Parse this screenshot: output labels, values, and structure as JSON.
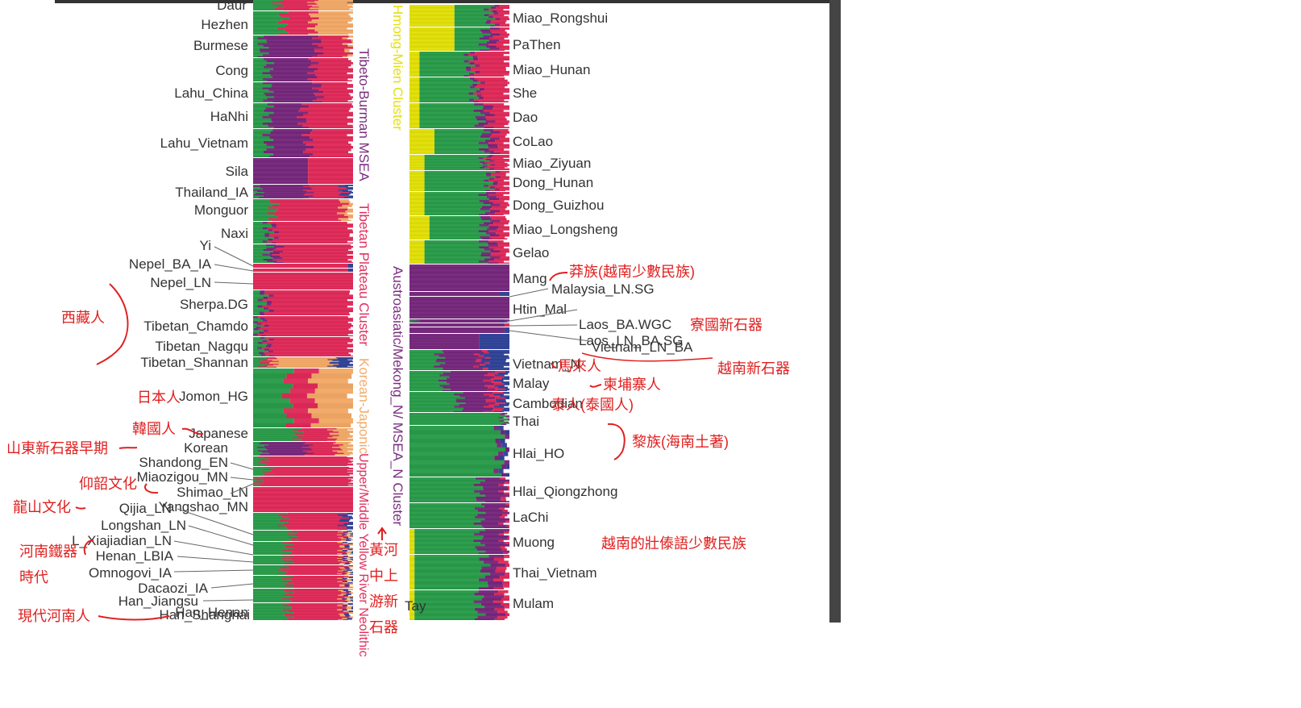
{
  "colors": {
    "green": "#2f9e4f",
    "purple": "#7a2e80",
    "pink": "#e0305e",
    "orange": "#f2ab6a",
    "yellow": "#e3e010",
    "navy": "#36489a",
    "lightpink": "#f0a0c8",
    "teal": "#33c0c0",
    "annotation": "#e02020",
    "label": "#333333"
  },
  "chart_data": {
    "type": "bar",
    "title": "",
    "xlabel": "",
    "ylabel": "",
    "components": [
      "yellow",
      "green",
      "purple",
      "pink",
      "orange",
      "navy"
    ],
    "left_panel": {
      "clusters": [
        "Tibeto-Burman MSEA",
        "Tibetan Plateau Cluster",
        "Korean-Japonic",
        "Upper/Middle Yellow River Neolithic"
      ],
      "groups": [
        {
          "name": "Daur",
          "yellow": 0,
          "green": 0.25,
          "purple": 0,
          "pink": 0.35,
          "orange": 0.4,
          "navy": 0
        },
        {
          "name": "Hezhen",
          "yellow": 0,
          "green": 0.3,
          "purple": 0,
          "pink": 0.3,
          "orange": 0.4,
          "navy": 0
        },
        {
          "name": "Burmese",
          "yellow": 0,
          "green": 0.1,
          "purple": 0.55,
          "pink": 0.3,
          "orange": 0.05,
          "navy": 0
        },
        {
          "name": "Cong",
          "yellow": 0,
          "green": 0.15,
          "purple": 0.45,
          "pink": 0.4,
          "orange": 0,
          "navy": 0
        },
        {
          "name": "Lahu_China",
          "yellow": 0,
          "green": 0.15,
          "purple": 0.5,
          "pink": 0.35,
          "orange": 0,
          "navy": 0
        },
        {
          "name": "HaNhi",
          "yellow": 0,
          "green": 0.15,
          "purple": 0.35,
          "pink": 0.5,
          "orange": 0,
          "navy": 0
        },
        {
          "name": "Lahu_Vietnam",
          "yellow": 0,
          "green": 0.15,
          "purple": 0.4,
          "pink": 0.45,
          "orange": 0,
          "navy": 0
        },
        {
          "name": "Sila",
          "yellow": 0,
          "green": 0,
          "purple": 0.55,
          "pink": 0.45,
          "orange": 0,
          "navy": 0
        },
        {
          "name": "Thailand_IA",
          "yellow": 0,
          "green": 0.05,
          "purple": 0.5,
          "pink": 0.35,
          "orange": 0,
          "navy": 0.1
        },
        {
          "name": "Monguor",
          "yellow": 0,
          "green": 0.2,
          "purple": 0,
          "pink": 0.7,
          "orange": 0.1,
          "navy": 0
        },
        {
          "name": "Naxi",
          "yellow": 0,
          "green": 0.15,
          "purple": 0.05,
          "pink": 0.8,
          "orange": 0,
          "navy": 0
        },
        {
          "name": "Yi",
          "yellow": 0,
          "green": 0.15,
          "purple": 0.1,
          "pink": 0.75,
          "orange": 0,
          "navy": 0
        },
        {
          "name": "Nepel_BA_IA",
          "yellow": 0,
          "green": 0,
          "purple": 0,
          "pink": 0.95,
          "orange": 0,
          "navy": 0.05
        },
        {
          "name": "Nepel_LN",
          "yellow": 0,
          "green": 0,
          "purple": 0,
          "pink": 0.95,
          "orange": 0,
          "navy": 0.05
        },
        {
          "name": "Sherpa.DG",
          "yellow": 0,
          "green": 0,
          "purple": 0,
          "pink": 1,
          "orange": 0,
          "navy": 0
        },
        {
          "name": "Tibetan_Chamdo",
          "yellow": 0,
          "green": 0.1,
          "purple": 0.05,
          "pink": 0.85,
          "orange": 0,
          "navy": 0
        },
        {
          "name": "Tibetan_Nagqu",
          "yellow": 0,
          "green": 0.05,
          "purple": 0.05,
          "pink": 0.9,
          "orange": 0,
          "navy": 0
        },
        {
          "name": "Tibetan_Shannan",
          "yellow": 0,
          "green": 0.1,
          "purple": 0.05,
          "pink": 0.85,
          "orange": 0,
          "navy": 0
        },
        {
          "name": "Jomon_HG",
          "yellow": 0,
          "green": 0.1,
          "purple": 0,
          "pink": 0.1,
          "orange": 0.6,
          "navy": 0.2
        },
        {
          "name": "Japanese",
          "yellow": 0,
          "green": 0.35,
          "purple": 0,
          "pink": 0.25,
          "orange": 0.4,
          "navy": 0
        },
        {
          "name": "Korean",
          "yellow": 0,
          "green": 0.45,
          "purple": 0,
          "pink": 0.35,
          "orange": 0.2,
          "navy": 0
        },
        {
          "name": "Shandong_EN",
          "yellow": 0,
          "green": 0.1,
          "purple": 0.45,
          "pink": 0.3,
          "orange": 0.15,
          "navy": 0
        },
        {
          "name": "Miaozigou_MN",
          "yellow": 0,
          "green": 0.1,
          "purple": 0,
          "pink": 0.9,
          "orange": 0,
          "navy": 0
        },
        {
          "name": "Shimao_LN",
          "yellow": 0,
          "green": 0.15,
          "purple": 0,
          "pink": 0.85,
          "orange": 0,
          "navy": 0
        },
        {
          "name": "Yangshao_MN",
          "yellow": 0,
          "green": 0.05,
          "purple": 0,
          "pink": 0.95,
          "orange": 0,
          "navy": 0
        },
        {
          "name": "Qijia_LN",
          "yellow": 0,
          "green": 0,
          "purple": 0,
          "pink": 1,
          "orange": 0,
          "navy": 0
        },
        {
          "name": "Longshan_LN",
          "yellow": 0,
          "green": 0.3,
          "purple": 0,
          "pink": 0.6,
          "orange": 0,
          "navy": 0.1
        },
        {
          "name": "L_Xiajiadian_LN",
          "yellow": 0,
          "green": 0.4,
          "purple": 0,
          "pink": 0.5,
          "orange": 0.05,
          "navy": 0.05
        },
        {
          "name": "Henan_LBIA",
          "yellow": 0,
          "green": 0.35,
          "purple": 0,
          "pink": 0.55,
          "orange": 0.05,
          "navy": 0.05
        },
        {
          "name": "Omnogovi_IA",
          "yellow": 0,
          "green": 0.35,
          "purple": 0,
          "pink": 0.55,
          "orange": 0.05,
          "navy": 0.05
        },
        {
          "name": "Dacaozi_IA",
          "yellow": 0,
          "green": 0.3,
          "purple": 0,
          "pink": 0.6,
          "orange": 0.05,
          "navy": 0.05
        },
        {
          "name": "Han_Jiangsu",
          "yellow": 0,
          "green": 0.35,
          "purple": 0,
          "pink": 0.55,
          "orange": 0.05,
          "navy": 0.05
        },
        {
          "name": "Han_Shanghai",
          "yellow": 0,
          "green": 0.35,
          "purple": 0,
          "pink": 0.55,
          "orange": 0.05,
          "navy": 0.05
        },
        {
          "name": "Han_Henan",
          "yellow": 0,
          "green": 0.35,
          "purple": 0,
          "pink": 0.55,
          "orange": 0.05,
          "navy": 0.05
        }
      ]
    },
    "right_panel": {
      "clusters": [
        "Hmong-Mien Cluster",
        "Austroasiatic/Mekong_N/ MSEA_N Cluster"
      ],
      "groups": [
        {
          "name": "Miao_Rongshui",
          "yellow": 0.45,
          "green": 0.35,
          "purple": 0.05,
          "pink": 0.15,
          "orange": 0,
          "navy": 0
        },
        {
          "name": "PaThen",
          "yellow": 0.45,
          "green": 0.3,
          "purple": 0.1,
          "pink": 0.15,
          "orange": 0,
          "navy": 0
        },
        {
          "name": "Miao_Hunan",
          "yellow": 0.1,
          "green": 0.5,
          "purple": 0.05,
          "pink": 0.35,
          "orange": 0,
          "navy": 0
        },
        {
          "name": "She",
          "yellow": 0.1,
          "green": 0.55,
          "purple": 0.05,
          "pink": 0.3,
          "orange": 0,
          "navy": 0
        },
        {
          "name": "Dao",
          "yellow": 0.1,
          "green": 0.6,
          "purple": 0.1,
          "pink": 0.2,
          "orange": 0,
          "navy": 0
        },
        {
          "name": "CoLao",
          "yellow": 0.25,
          "green": 0.5,
          "purple": 0.1,
          "pink": 0.15,
          "orange": 0,
          "navy": 0
        },
        {
          "name": "Miao_Ziyuan",
          "yellow": 0.15,
          "green": 0.6,
          "purple": 0.05,
          "pink": 0.2,
          "orange": 0,
          "navy": 0
        },
        {
          "name": "Dong_Hunan",
          "yellow": 0.15,
          "green": 0.65,
          "purple": 0.05,
          "pink": 0.15,
          "orange": 0,
          "navy": 0
        },
        {
          "name": "Dong_Guizhou",
          "yellow": 0.15,
          "green": 0.6,
          "purple": 0.1,
          "pink": 0.15,
          "orange": 0,
          "navy": 0
        },
        {
          "name": "Miao_Longsheng",
          "yellow": 0.2,
          "green": 0.55,
          "purple": 0.1,
          "pink": 0.15,
          "orange": 0,
          "navy": 0
        },
        {
          "name": "Gelao",
          "yellow": 0.15,
          "green": 0.6,
          "purple": 0.1,
          "pink": 0.15,
          "orange": 0,
          "navy": 0
        },
        {
          "name": "Mang",
          "yellow": 0,
          "green": 0,
          "purple": 1,
          "pink": 0,
          "orange": 0,
          "navy": 0
        },
        {
          "name": "Malaysia_LN.SG",
          "yellow": 0,
          "green": 0,
          "purple": 0.9,
          "pink": 0,
          "orange": 0,
          "navy": 0.1
        },
        {
          "name": "Htin_Mal",
          "yellow": 0,
          "green": 0,
          "purple": 1,
          "pink": 0,
          "orange": 0,
          "navy": 0
        },
        {
          "name": "Laos_BA.WGC",
          "yellow": 0,
          "green": 0.05,
          "purple": 0.9,
          "pink": 0,
          "orange": 0,
          "navy": 0.05
        },
        {
          "name": "Laos_LN_BA.SG",
          "yellow": 0,
          "green": 0,
          "purple": 0.95,
          "pink": 0.05,
          "orange": 0,
          "navy": 0
        },
        {
          "name": "Vietnam_LN_BA",
          "yellow": 0,
          "green": 0,
          "purple": 0.95,
          "pink": 0,
          "orange": 0,
          "navy": 0.05
        },
        {
          "name": "Vietnam_N",
          "yellow": 0,
          "green": 0,
          "purple": 0.7,
          "pink": 0,
          "orange": 0,
          "navy": 0.3
        },
        {
          "name": "Malay",
          "yellow": 0,
          "green": 0.3,
          "purple": 0.4,
          "pink": 0.05,
          "orange": 0,
          "navy": 0.25
        },
        {
          "name": "Cambodian",
          "yellow": 0,
          "green": 0.35,
          "purple": 0.45,
          "pink": 0.1,
          "orange": 0,
          "navy": 0.1
        },
        {
          "name": "Thai",
          "yellow": 0,
          "green": 0.5,
          "purple": 0.3,
          "pink": 0.1,
          "orange": 0,
          "navy": 0.1
        },
        {
          "name": "Hlai_HO",
          "yellow": 0,
          "green": 0.95,
          "purple": 0.05,
          "pink": 0,
          "orange": 0,
          "navy": 0
        },
        {
          "name": "Hlai_Qiongzhong",
          "yellow": 0,
          "green": 0.9,
          "purple": 0.05,
          "pink": 0,
          "orange": 0,
          "navy": 0.05
        },
        {
          "name": "LaChi",
          "yellow": 0,
          "green": 0.7,
          "purple": 0.25,
          "pink": 0.05,
          "orange": 0,
          "navy": 0
        },
        {
          "name": "Muong",
          "yellow": 0,
          "green": 0.7,
          "purple": 0.25,
          "pink": 0.05,
          "orange": 0,
          "navy": 0
        },
        {
          "name": "Thai_Vietnam",
          "yellow": 0.05,
          "green": 0.65,
          "purple": 0.25,
          "pink": 0.05,
          "orange": 0,
          "navy": 0
        },
        {
          "name": "Mulam",
          "yellow": 0.05,
          "green": 0.7,
          "purple": 0.15,
          "pink": 0.1,
          "orange": 0,
          "navy": 0
        },
        {
          "name": "Tay",
          "yellow": 0.05,
          "green": 0.65,
          "purple": 0.2,
          "pink": 0.1,
          "orange": 0,
          "navy": 0
        }
      ]
    }
  },
  "annotations": {
    "tibetan": "西藏人",
    "japanese": "日本人",
    "korean": "韓國人",
    "shandong": "山東新石器早期",
    "yangshao": "仰韶文化",
    "longshan": "龍山文化",
    "henan_iron_1": "河南鐵器",
    "henan_iron_2": "時代",
    "modern_henan": "現代河南人",
    "yellow_river_1": "黃河",
    "yellow_river_2": "中上",
    "yellow_river_3": "游新",
    "yellow_river_4": "石器",
    "mang": "莽族(越南少數民族)",
    "laos": "寮國新石器",
    "vietnam_neo": "越南新石器",
    "malay": "馬來人",
    "cambodian": "柬埔寨人",
    "thai": "泰人(泰國人)",
    "hlai": "黎族(海南土著)",
    "thai_vietnam": "越南的壯傣語少數民族"
  }
}
